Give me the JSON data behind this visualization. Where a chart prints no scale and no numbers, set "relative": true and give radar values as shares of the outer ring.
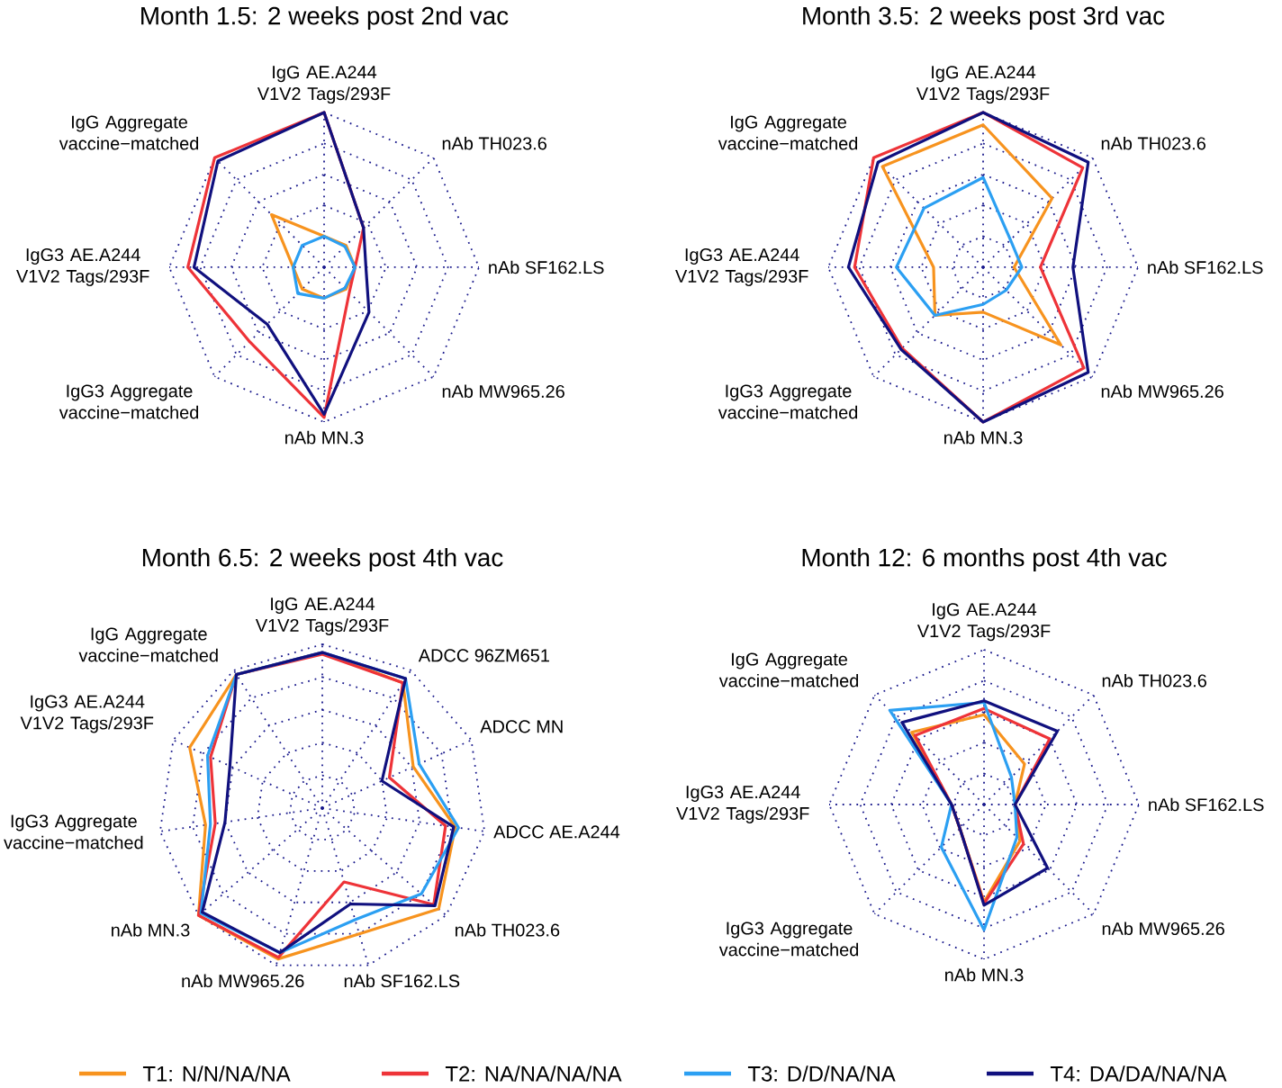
{
  "chart_data": [
    {
      "type": "radar",
      "title": "Month 1.5: 2 weeks post 2nd vac",
      "relative": true,
      "legend": "bottom",
      "categories": [
        "IgG AE.A244 V1V2 Tags/293F",
        "nAb TH023.6",
        "nAb SF162.LS",
        "nAb MW965.26",
        "nAb MN.3",
        "IgG3 Aggregate vaccine−matched",
        "IgG3 AE.A244 V1V2 Tags/293F",
        "IgG Aggregate vaccine−matched"
      ],
      "series": [
        {
          "name": "T1: N/N/NA/NA",
          "color": "#f7931e",
          "values": [
            0.2,
            0.2,
            0.2,
            0.2,
            0.2,
            0.2,
            0.2,
            0.48
          ]
        },
        {
          "name": "T2: NA/NA/NA/NA",
          "color": "#ee3338",
          "values": [
            1.0,
            0.36,
            0.2,
            0.23,
            0.97,
            0.68,
            0.88,
            1.0
          ]
        },
        {
          "name": "T3: D/D/NA/NA",
          "color": "#2b9ff2",
          "values": [
            0.2,
            0.19,
            0.2,
            0.19,
            0.2,
            0.24,
            0.2,
            0.2
          ]
        },
        {
          "name": "T4: DA/DA/NA/NA",
          "color": "#10107e",
          "values": [
            1.0,
            0.36,
            0.27,
            0.41,
            0.95,
            0.52,
            0.84,
            0.97
          ]
        }
      ]
    },
    {
      "type": "radar",
      "title": "Month 3.5: 2 weeks post 3rd vac",
      "relative": true,
      "categories": [
        "IgG AE.A244 V1V2 Tags/293F",
        "nAb TH023.6",
        "nAb SF162.LS",
        "nAb MW965.26",
        "nAb MN.3",
        "IgG3 Aggregate vaccine−matched",
        "IgG3 AE.A244 V1V2 Tags/293F",
        "IgG Aggregate vaccine−matched"
      ],
      "series": [
        {
          "color": "#f7931e",
          "values": [
            0.92,
            0.63,
            0.2,
            0.71,
            0.29,
            0.44,
            0.32,
            0.92
          ]
        },
        {
          "color": "#ee3338",
          "values": [
            1.0,
            0.91,
            0.37,
            0.92,
            1.0,
            0.74,
            0.83,
            1.0
          ]
        },
        {
          "color": "#2b9ff2",
          "values": [
            0.58,
            0.25,
            0.25,
            0.21,
            0.24,
            0.44,
            0.56,
            0.54
          ]
        },
        {
          "color": "#10107e",
          "values": [
            1.0,
            0.96,
            0.58,
            0.96,
            1.0,
            0.75,
            0.87,
            0.96
          ]
        }
      ]
    },
    {
      "type": "radar",
      "title": "Month 6.5: 2 weeks post 4th vac",
      "relative": true,
      "categories": [
        "IgG AE.A244 V1V2 Tags/293F",
        "ADCC 96ZM651",
        "ADCC MN",
        "ADCC AE.A244",
        "nAb TH023.6",
        "nAb SF162.LS",
        "nAb MW965.26",
        "nAb MN.3",
        "IgG3 Aggregate vaccine−matched",
        "IgG3 AE.A244 V1V2 Tags/293F",
        "IgG Aggregate vaccine−matched"
      ],
      "series": [
        {
          "color": "#f7931e",
          "values": [
            0.95,
            0.91,
            0.61,
            0.82,
            0.94,
            0.8,
            0.96,
            1.0,
            0.72,
            0.89,
            0.97
          ]
        },
        {
          "color": "#ee3338",
          "values": [
            0.94,
            0.91,
            0.45,
            0.76,
            0.9,
            0.47,
            0.95,
            1.0,
            0.66,
            0.75,
            0.97
          ]
        },
        {
          "color": "#2b9ff2",
          "values": [
            0.95,
            0.94,
            0.65,
            0.84,
            0.8,
            0.71,
            0.92,
            0.98,
            0.69,
            0.77,
            0.97
          ]
        },
        {
          "color": "#10107e",
          "values": [
            0.95,
            0.94,
            0.4,
            0.81,
            0.91,
            0.61,
            0.92,
            0.97,
            0.6,
            0.62,
            0.97
          ]
        }
      ]
    },
    {
      "type": "radar",
      "title": "Month 12: 6 months post 4th vac",
      "relative": true,
      "categories": [
        "IgG AE.A244 V1V2 Tags/293F",
        "nAb TH023.6",
        "nAb SF162.LS",
        "nAb MW965.26",
        "nAb MN.3",
        "IgG3 Aggregate vaccine−matched",
        "IgG3 AE.A244 V1V2 Tags/293F",
        "IgG Aggregate vaccine−matched"
      ],
      "series": [
        {
          "color": "#f7931e",
          "values": [
            0.58,
            0.37,
            0.2,
            0.33,
            0.63,
            0.22,
            0.21,
            0.66
          ]
        },
        {
          "color": "#ee3338",
          "values": [
            0.62,
            0.6,
            0.2,
            0.36,
            0.64,
            0.22,
            0.21,
            0.63
          ]
        },
        {
          "color": "#2b9ff2",
          "values": [
            0.66,
            0.25,
            0.2,
            0.3,
            0.81,
            0.39,
            0.21,
            0.86
          ]
        },
        {
          "color": "#10107e",
          "values": [
            0.67,
            0.67,
            0.2,
            0.58,
            0.65,
            0.22,
            0.21,
            0.75
          ]
        }
      ]
    }
  ]
}
